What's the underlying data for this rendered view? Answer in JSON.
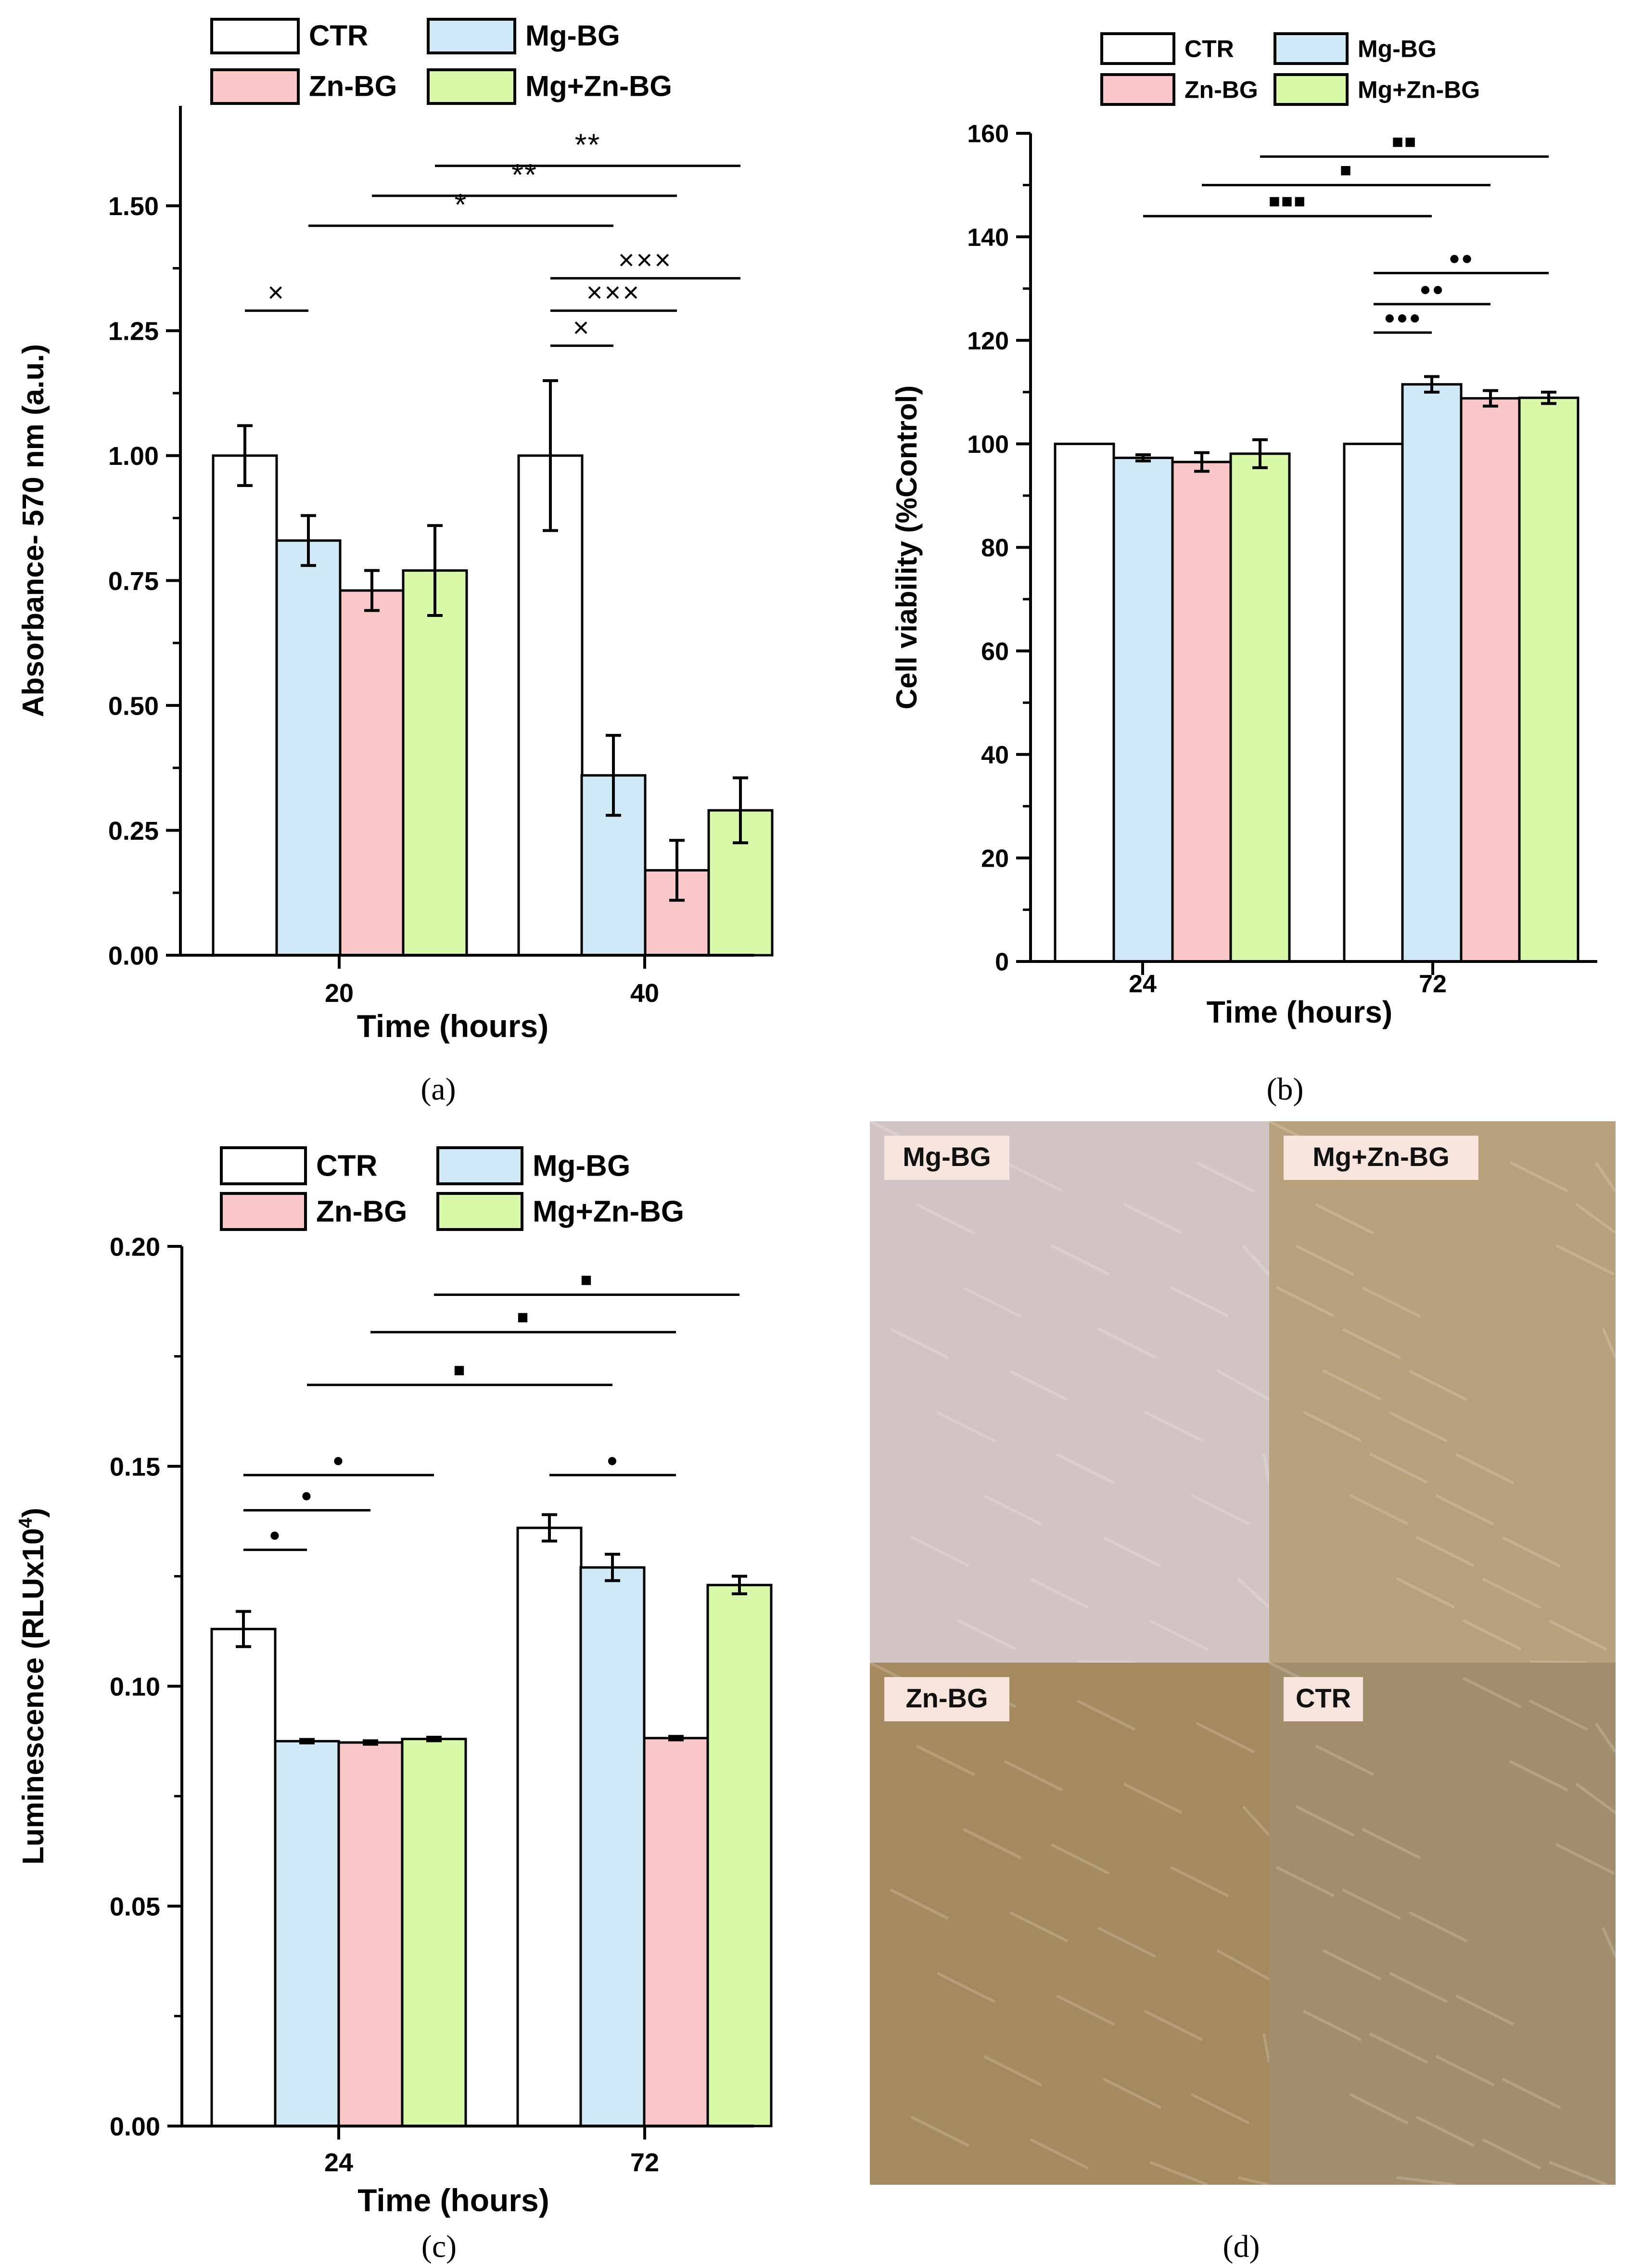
{
  "colors": {
    "CTR": "#ffffff",
    "Mg-BG": "#cfe9f7",
    "Zn-BG": "#f9c7c7",
    "Mg+Zn-BG": "#d7f9a8",
    "axis": "#000000"
  },
  "chart_data": [
    {
      "id": "a",
      "type": "bar",
      "caption": "(a)",
      "xlabel": "Time (hours)",
      "ylabel": "Absorbance- 570 nm (a.u.)",
      "categories": [
        "20",
        "40"
      ],
      "ylim": [
        0,
        1.7
      ],
      "yticks": [
        "0.00",
        "0.25",
        "0.50",
        "0.75",
        "1.00",
        "1.25",
        "1.50"
      ],
      "series": [
        {
          "name": "CTR",
          "values": [
            1.0,
            1.0
          ],
          "errors": [
            0.06,
            0.15
          ]
        },
        {
          "name": "Mg-BG",
          "values": [
            0.83,
            0.36
          ],
          "errors": [
            0.05,
            0.08
          ]
        },
        {
          "name": "Zn-BG",
          "values": [
            0.73,
            0.17
          ],
          "errors": [
            0.04,
            0.06
          ]
        },
        {
          "name": "Mg+Zn-BG",
          "values": [
            0.77,
            0.29
          ],
          "errors": [
            0.09,
            0.065
          ]
        }
      ],
      "legend": [
        "CTR",
        "Mg-BG",
        "Zn-BG",
        "Mg+Zn-BG"
      ],
      "annotations": [
        {
          "symbol": "×",
          "from": [
            0,
            0
          ],
          "to": [
            0,
            1
          ],
          "level": 1.29
        },
        {
          "symbol": "*",
          "from": [
            0,
            1
          ],
          "to": [
            1,
            1
          ],
          "level": 1.46
        },
        {
          "symbol": "**",
          "from": [
            0,
            2
          ],
          "to": [
            1,
            2
          ],
          "level": 1.52
        },
        {
          "symbol": "**",
          "from": [
            0,
            3
          ],
          "to": [
            1,
            3
          ],
          "level": 1.58
        },
        {
          "symbol": "×",
          "from": [
            1,
            0
          ],
          "to": [
            1,
            1
          ],
          "level": 1.22
        },
        {
          "symbol": "×××",
          "from": [
            1,
            0
          ],
          "to": [
            1,
            2
          ],
          "level": 1.29
        },
        {
          "symbol": "×××",
          "from": [
            1,
            0
          ],
          "to": [
            1,
            3
          ],
          "level": 1.355
        }
      ]
    },
    {
      "id": "b",
      "type": "bar",
      "caption": "(b)",
      "xlabel": "Time (hours)",
      "ylabel": "Cell viability (%Control)",
      "categories": [
        "24",
        "72"
      ],
      "ylim": [
        0,
        160
      ],
      "yticks": [
        "0",
        "20",
        "40",
        "60",
        "80",
        "100",
        "120",
        "140",
        "160"
      ],
      "series": [
        {
          "name": "CTR",
          "values": [
            100,
            100
          ],
          "errors": [
            0,
            0
          ]
        },
        {
          "name": "Mg-BG",
          "values": [
            97.3,
            111.5
          ],
          "errors": [
            0.6,
            1.5
          ]
        },
        {
          "name": "Zn-BG",
          "values": [
            96.5,
            108.8
          ],
          "errors": [
            1.8,
            1.5
          ]
        },
        {
          "name": "Mg+Zn-BG",
          "values": [
            98.1,
            108.9
          ],
          "errors": [
            2.7,
            1.1
          ]
        }
      ],
      "legend": [
        "CTR",
        "Mg-BG",
        "Zn-BG",
        "Mg+Zn-BG"
      ],
      "annotations": [
        {
          "symbol": "■■■",
          "from": [
            0,
            1
          ],
          "to": [
            1,
            1
          ],
          "level": 144
        },
        {
          "symbol": "■",
          "from": [
            0,
            2
          ],
          "to": [
            1,
            2
          ],
          "level": 150
        },
        {
          "symbol": "■■",
          "from": [
            0,
            3
          ],
          "to": [
            1,
            3
          ],
          "level": 155.5
        },
        {
          "symbol": "●●●",
          "from": [
            1,
            0
          ],
          "to": [
            1,
            1
          ],
          "level": 121.5
        },
        {
          "symbol": "●●",
          "from": [
            1,
            0
          ],
          "to": [
            1,
            2
          ],
          "level": 127
        },
        {
          "symbol": "●●",
          "from": [
            1,
            0
          ],
          "to": [
            1,
            3
          ],
          "level": 133
        }
      ]
    },
    {
      "id": "c",
      "type": "bar",
      "caption": "(c)",
      "xlabel": "Time (hours)",
      "ylabel": "Luminescence (RLUx10",
      "ylabel_sup": "4",
      "ylabel_close": ")",
      "categories": [
        "24",
        "72"
      ],
      "ylim": [
        0,
        0.2
      ],
      "yticks": [
        "0.00",
        "0.05",
        "0.10",
        "0.15",
        "0.20"
      ],
      "series": [
        {
          "name": "CTR",
          "values": [
            0.113,
            0.136
          ],
          "errors": [
            0.004,
            0.003
          ]
        },
        {
          "name": "Mg-BG",
          "values": [
            0.0875,
            0.127
          ],
          "errors": [
            0.0004,
            0.003
          ]
        },
        {
          "name": "Zn-BG",
          "values": [
            0.0872,
            0.0882
          ],
          "errors": [
            0.0004,
            0.0004
          ]
        },
        {
          "name": "Mg+Zn-BG",
          "values": [
            0.088,
            0.123
          ],
          "errors": [
            0.0004,
            0.002
          ]
        }
      ],
      "legend": [
        "CTR",
        "Mg-BG",
        "Zn-BG",
        "Mg+Zn-BG"
      ],
      "annotations": [
        {
          "symbol": "●",
          "from": [
            0,
            0
          ],
          "to": [
            0,
            1
          ],
          "level": 0.131
        },
        {
          "symbol": "●",
          "from": [
            0,
            0
          ],
          "to": [
            0,
            2
          ],
          "level": 0.14
        },
        {
          "symbol": "●",
          "from": [
            0,
            0
          ],
          "to": [
            0,
            3
          ],
          "level": 0.148
        },
        {
          "symbol": "■",
          "from": [
            0,
            1
          ],
          "to": [
            1,
            1
          ],
          "level": 0.1685
        },
        {
          "symbol": "■",
          "from": [
            0,
            2
          ],
          "to": [
            1,
            2
          ],
          "level": 0.1805
        },
        {
          "symbol": "■",
          "from": [
            0,
            3
          ],
          "to": [
            1,
            3
          ],
          "level": 0.189
        },
        {
          "symbol": "●",
          "from": [
            1,
            0
          ],
          "to": [
            1,
            2
          ],
          "level": 0.148
        }
      ]
    }
  ],
  "micrographs": {
    "caption": "(d)",
    "panels": [
      {
        "label": "Mg-BG",
        "tone": "#d2c4c4"
      },
      {
        "label": "Mg+Zn-BG",
        "tone": "#b8a07c"
      },
      {
        "label": "Zn-BG",
        "tone": "#a48a5e"
      },
      {
        "label": "CTR",
        "tone": "#a28e6c"
      }
    ]
  }
}
